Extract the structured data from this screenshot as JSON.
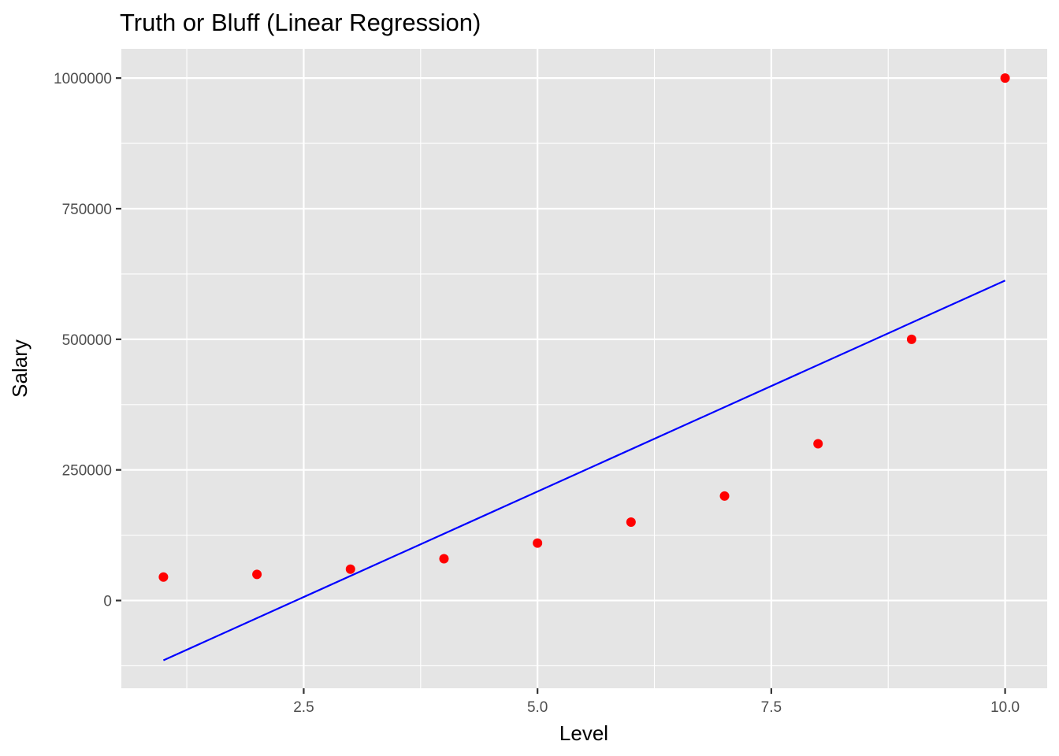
{
  "chart_data": {
    "type": "scatter",
    "title": "Truth or Bluff (Linear Regression)",
    "xlabel": "Level",
    "ylabel": "Salary",
    "xlim": [
      0.55,
      10.45
    ],
    "ylim": [
      -168000,
      1056000
    ],
    "x_ticks": [
      2.5,
      5.0,
      7.5,
      10.0
    ],
    "x_tick_labels": [
      "2.5",
      "5.0",
      "7.5",
      "10.0"
    ],
    "x_minor_ticks": [
      1.25,
      3.75,
      6.25,
      8.75
    ],
    "y_ticks": [
      0,
      250000,
      500000,
      750000,
      1000000
    ],
    "y_tick_labels": [
      "0",
      "250000",
      "500000",
      "750000",
      "1000000"
    ],
    "y_minor_ticks": [
      -125000,
      125000,
      375000,
      625000,
      875000
    ],
    "grid": true,
    "points": {
      "x": [
        1,
        2,
        3,
        4,
        5,
        6,
        7,
        8,
        9,
        10
      ],
      "y": [
        45000,
        50000,
        60000,
        80000,
        110000,
        150000,
        200000,
        300000,
        500000,
        1000000
      ],
      "color": "#ff0000"
    },
    "regression_line": {
      "x": [
        1,
        10
      ],
      "y": [
        -114455,
        612455
      ],
      "color": "#0000ff"
    },
    "panel_color": "#e5e5e5",
    "grid_color": "#ffffff"
  }
}
